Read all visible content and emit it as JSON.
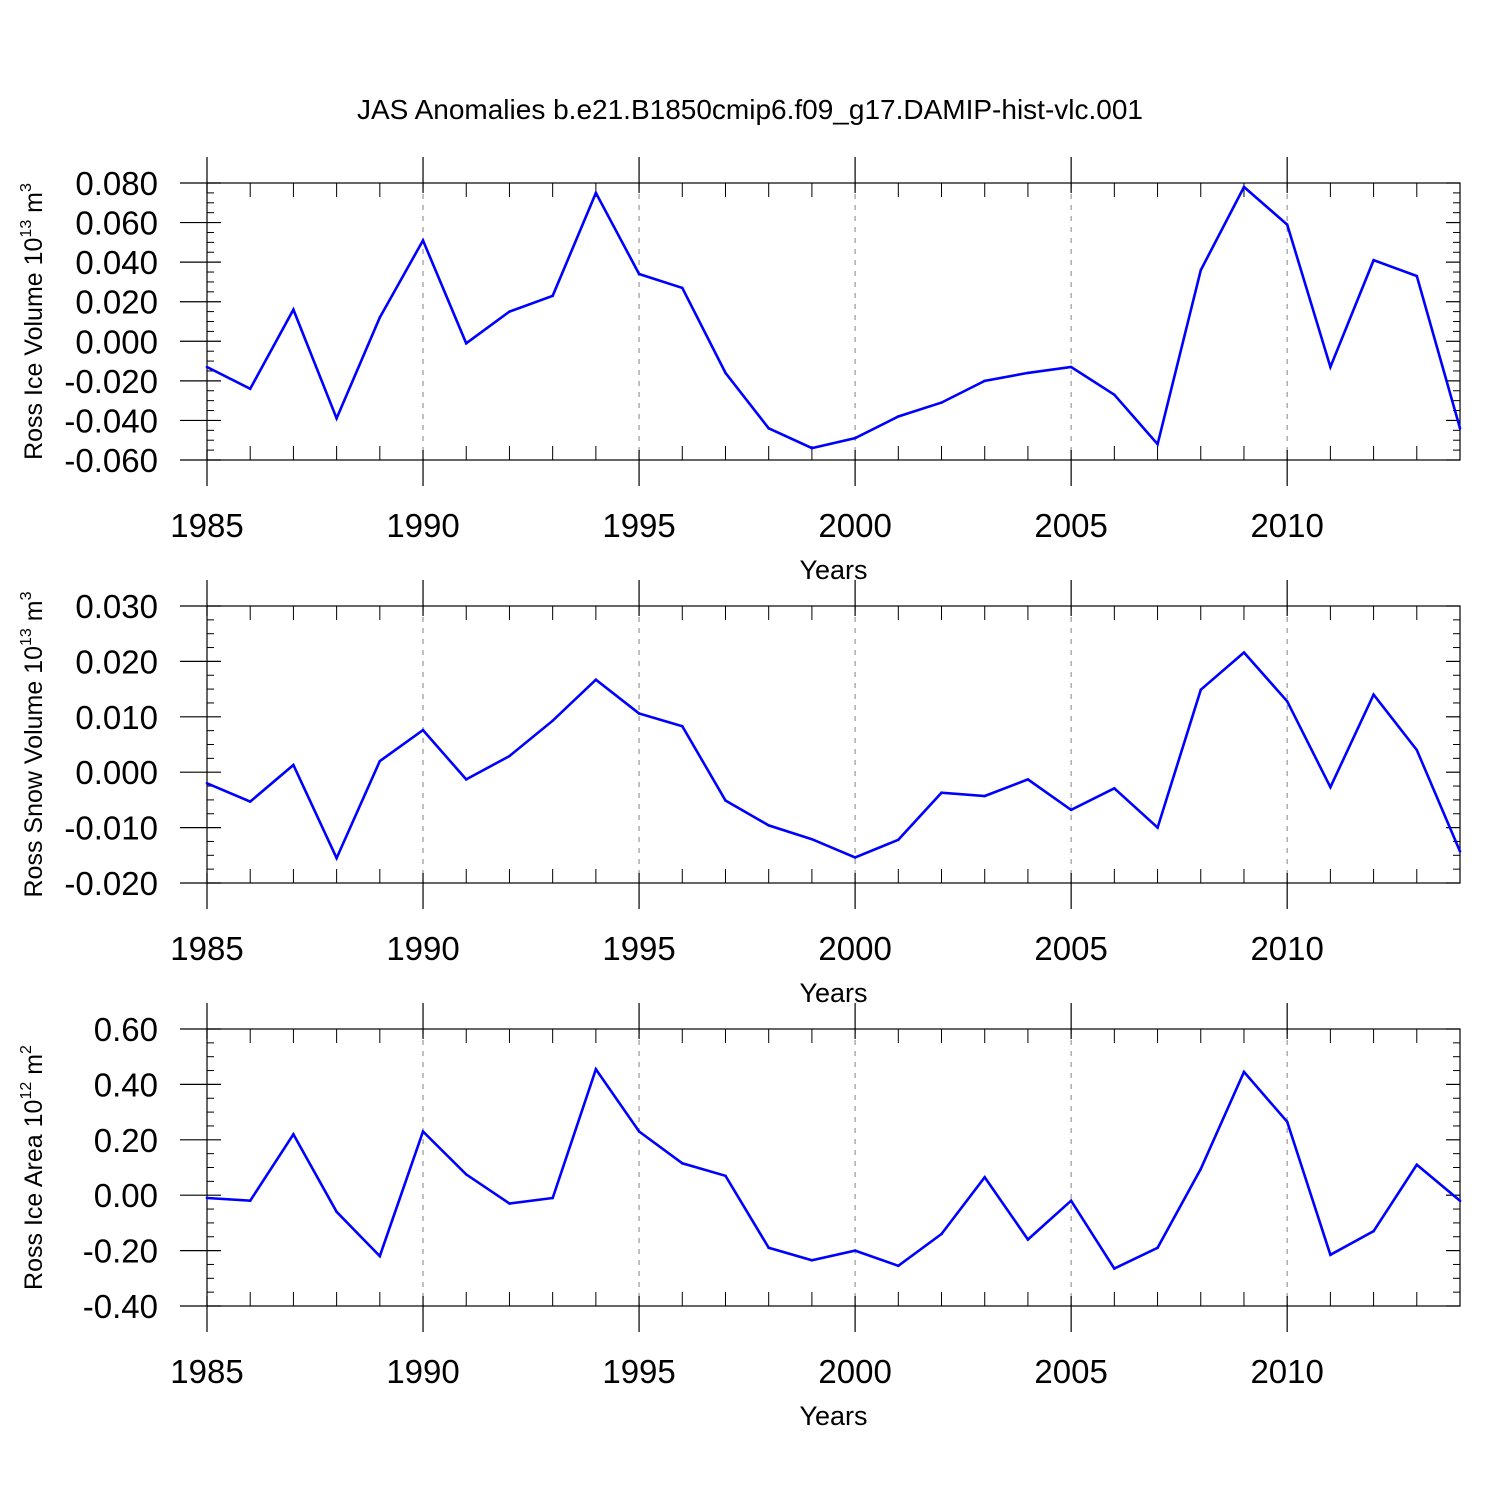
{
  "figure": {
    "title": "JAS Anomalies b.e21.B1850cmip6.f09_g17.DAMIP-hist-vlc.001",
    "line_color": "#0000ff",
    "grid_color": "#999999"
  },
  "chart_data": [
    {
      "type": "line",
      "ylabel": "Ross Ice Volume 10",
      "ylabel_exp": "13",
      "ylabel_unit": " m",
      "ylabel_unit_exp": "3",
      "xlabel": "Years",
      "xlim": [
        1985,
        2014
      ],
      "ylim": [
        -0.06,
        0.08
      ],
      "xticks": [
        1985,
        1990,
        1995,
        2000,
        2005,
        2010
      ],
      "xtick_labels": [
        "1985",
        "1990",
        "1995",
        "2000",
        "2005",
        "2010"
      ],
      "yticks": [
        -0.06,
        -0.04,
        -0.02,
        0.0,
        0.02,
        0.04,
        0.06,
        0.08
      ],
      "ytick_labels": [
        "-0.060",
        "-0.040",
        "-0.020",
        "0.000",
        "0.020",
        "0.040",
        "0.060",
        "0.080"
      ],
      "x": [
        1985,
        1986,
        1987,
        1988,
        1989,
        1990,
        1991,
        1992,
        1993,
        1994,
        1995,
        1996,
        1997,
        1998,
        1999,
        2000,
        2001,
        2002,
        2003,
        2004,
        2005,
        2006,
        2007,
        2008,
        2009,
        2010,
        2011,
        2012,
        2013,
        2014
      ],
      "series": [
        {
          "values": [
            -0.013,
            -0.024,
            0.016,
            -0.039,
            0.012,
            0.051,
            -0.001,
            0.015,
            0.023,
            0.075,
            0.034,
            0.027,
            -0.016,
            -0.044,
            -0.054,
            -0.049,
            -0.038,
            -0.031,
            -0.02,
            -0.016,
            -0.013,
            -0.027,
            -0.052,
            0.036,
            0.078,
            0.059,
            -0.013,
            0.041,
            0.033,
            -0.044
          ]
        }
      ],
      "grid": "dashed vertical lines at major x ticks"
    },
    {
      "type": "line",
      "ylabel": "Ross Snow Volume 10",
      "ylabel_exp": "13",
      "ylabel_unit": " m",
      "ylabel_unit_exp": "3",
      "xlabel": "Years",
      "xlim": [
        1985,
        2014
      ],
      "ylim": [
        -0.02,
        0.03
      ],
      "xticks": [
        1985,
        1990,
        1995,
        2000,
        2005,
        2010
      ],
      "xtick_labels": [
        "1985",
        "1990",
        "1995",
        "2000",
        "2005",
        "2010"
      ],
      "yticks": [
        -0.02,
        -0.01,
        0.0,
        0.01,
        0.02,
        0.03
      ],
      "ytick_labels": [
        "-0.020",
        "-0.010",
        "0.000",
        "0.010",
        "0.020",
        "0.030"
      ],
      "x": [
        1985,
        1986,
        1987,
        1988,
        1989,
        1990,
        1991,
        1992,
        1993,
        1994,
        1995,
        1996,
        1997,
        1998,
        1999,
        2000,
        2001,
        2002,
        2003,
        2004,
        2005,
        2006,
        2007,
        2008,
        2009,
        2010,
        2011,
        2012,
        2013,
        2014
      ],
      "series": [
        {
          "values": [
            -0.002,
            -0.0053,
            0.0013,
            -0.0155,
            0.002,
            0.0076,
            -0.0013,
            0.0029,
            0.0093,
            0.0167,
            0.0106,
            0.0083,
            -0.0051,
            -0.0096,
            -0.0121,
            -0.0154,
            -0.0122,
            -0.0037,
            -0.0043,
            -0.0013,
            -0.0068,
            -0.0029,
            -0.01,
            0.0149,
            0.0216,
            0.0128,
            -0.0027,
            0.014,
            0.004,
            -0.0143
          ]
        }
      ],
      "grid": "dashed vertical lines at major x ticks"
    },
    {
      "type": "line",
      "ylabel": "Ross Ice Area 10",
      "ylabel_exp": "12",
      "ylabel_unit": " m",
      "ylabel_unit_exp": "2",
      "xlabel": "Years",
      "xlim": [
        1985,
        2014
      ],
      "ylim": [
        -0.4,
        0.6
      ],
      "xticks": [
        1985,
        1990,
        1995,
        2000,
        2005,
        2010
      ],
      "xtick_labels": [
        "1985",
        "1990",
        "1995",
        "2000",
        "2005",
        "2010"
      ],
      "yticks": [
        -0.4,
        -0.2,
        0.0,
        0.2,
        0.4,
        0.6
      ],
      "ytick_labels": [
        "-0.40",
        "-0.20",
        "0.00",
        "0.20",
        "0.40",
        "0.60"
      ],
      "x": [
        1985,
        1986,
        1987,
        1988,
        1989,
        1990,
        1991,
        1992,
        1993,
        1994,
        1995,
        1996,
        1997,
        1998,
        1999,
        2000,
        2001,
        2002,
        2003,
        2004,
        2005,
        2006,
        2007,
        2008,
        2009,
        2010,
        2011,
        2012,
        2013,
        2014
      ],
      "series": [
        {
          "values": [
            -0.01,
            -0.02,
            0.22,
            -0.06,
            -0.22,
            0.23,
            0.075,
            -0.03,
            -0.01,
            0.455,
            0.23,
            0.115,
            0.07,
            -0.19,
            -0.235,
            -0.2,
            -0.255,
            -0.14,
            0.065,
            -0.16,
            -0.02,
            -0.265,
            -0.19,
            0.095,
            0.445,
            0.265,
            -0.215,
            -0.13,
            0.11,
            -0.02
          ]
        }
      ],
      "grid": "dashed vertical lines at major x ticks"
    }
  ]
}
